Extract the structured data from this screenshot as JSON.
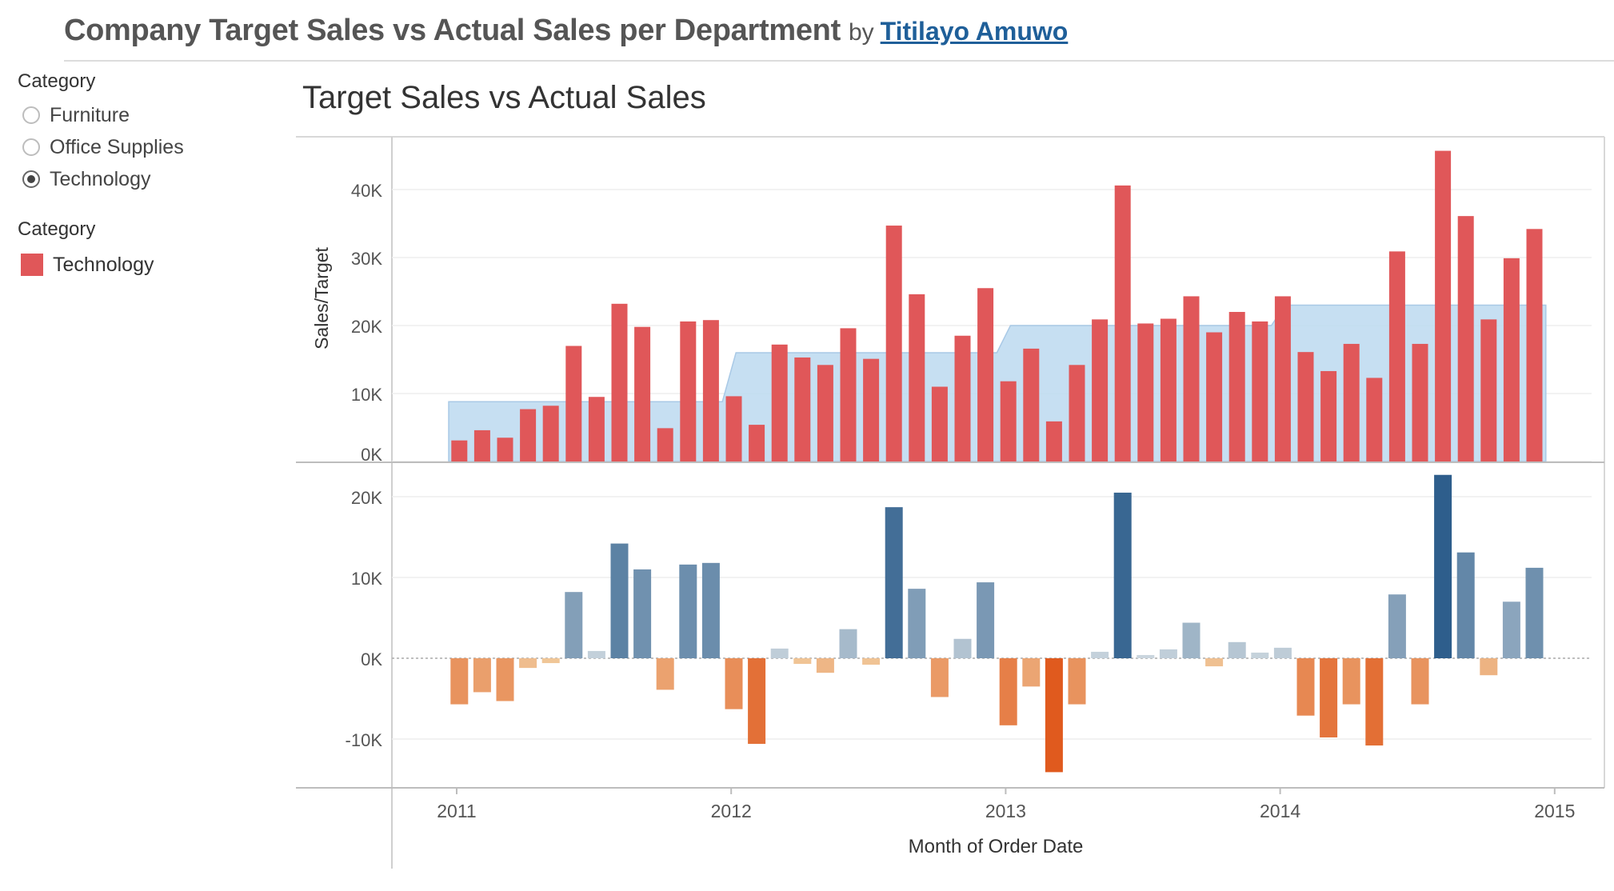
{
  "dashboard": {
    "title": "Company Target Sales vs Actual Sales per Department",
    "by": "by",
    "author": "Titilayo Amuwo"
  },
  "filter": {
    "title": "Category",
    "options": [
      "Furniture",
      "Office Supplies",
      "Technology"
    ],
    "selected": "Technology"
  },
  "legend": {
    "title": "Category",
    "items": [
      {
        "label": "Technology",
        "color": "#e05759"
      }
    ]
  },
  "chart_data": [
    {
      "type": "bar",
      "title": "Target Sales vs Actual Sales",
      "ylabel": "Sales/Target",
      "xlabel": "",
      "x_start": "2011-01",
      "y_ticks": [
        "0K",
        "10K",
        "20K",
        "30K",
        "40K"
      ],
      "ylim": [
        0,
        47000
      ],
      "bar_color": "#e05759",
      "target_color": "#bcd9f0",
      "grid": true,
      "series": [
        {
          "name": "Sales",
          "type": "bar",
          "values": [
            3100,
            4600,
            3500,
            7700,
            8200,
            17000,
            9500,
            23200,
            19800,
            4900,
            20600,
            20800,
            9600,
            5400,
            17200,
            15300,
            14200,
            19600,
            15100,
            34700,
            24600,
            11000,
            18500,
            25500,
            11800,
            16600,
            5900,
            14200,
            20900,
            40600,
            20300,
            21000,
            24300,
            19000,
            22000,
            20600,
            24300,
            16100,
            13300,
            17300,
            12300,
            30900,
            17300,
            45700,
            36100,
            20900,
            29900,
            34200
          ]
        },
        {
          "name": "Target",
          "type": "area",
          "values": [
            8800,
            8800,
            8800,
            8800,
            8800,
            8800,
            8800,
            8800,
            8800,
            8800,
            8800,
            8800,
            16000,
            16000,
            16000,
            16000,
            16000,
            16000,
            16000,
            16000,
            16000,
            16000,
            16000,
            16000,
            20000,
            20000,
            20000,
            20000,
            20000,
            20000,
            20000,
            20000,
            20000,
            20000,
            20000,
            20000,
            23000,
            23000,
            23000,
            23000,
            23000,
            23000,
            23000,
            23000,
            23000,
            23000,
            23000,
            23000
          ]
        }
      ]
    },
    {
      "type": "bar",
      "title": "",
      "ylabel": "",
      "xlabel": "Month of Order Date",
      "x_ticks": [
        "2011",
        "2012",
        "2013",
        "2014",
        "2015"
      ],
      "y_ticks": [
        "-10K",
        "0K",
        "10K",
        "20K"
      ],
      "ylim": [
        -16000,
        24000
      ],
      "positive_color": "#2e5e8c",
      "negative_color": "#e05a1e",
      "grid": true,
      "series": [
        {
          "name": "Sales - Target",
          "values": [
            -5700,
            -4200,
            -5300,
            -1200,
            -600,
            8200,
            900,
            14200,
            11000,
            -3900,
            11600,
            11800,
            -6300,
            -10600,
            1200,
            -700,
            -1800,
            3600,
            -800,
            18700,
            8600,
            -4800,
            2400,
            9400,
            -8300,
            -3500,
            -14100,
            -5700,
            800,
            20500,
            400,
            1100,
            4400,
            -1000,
            2000,
            700,
            1300,
            -7100,
            -9800,
            -5700,
            -10800,
            7900,
            -5700,
            22700,
            13100,
            -2100,
            7000,
            11200
          ]
        }
      ]
    }
  ]
}
